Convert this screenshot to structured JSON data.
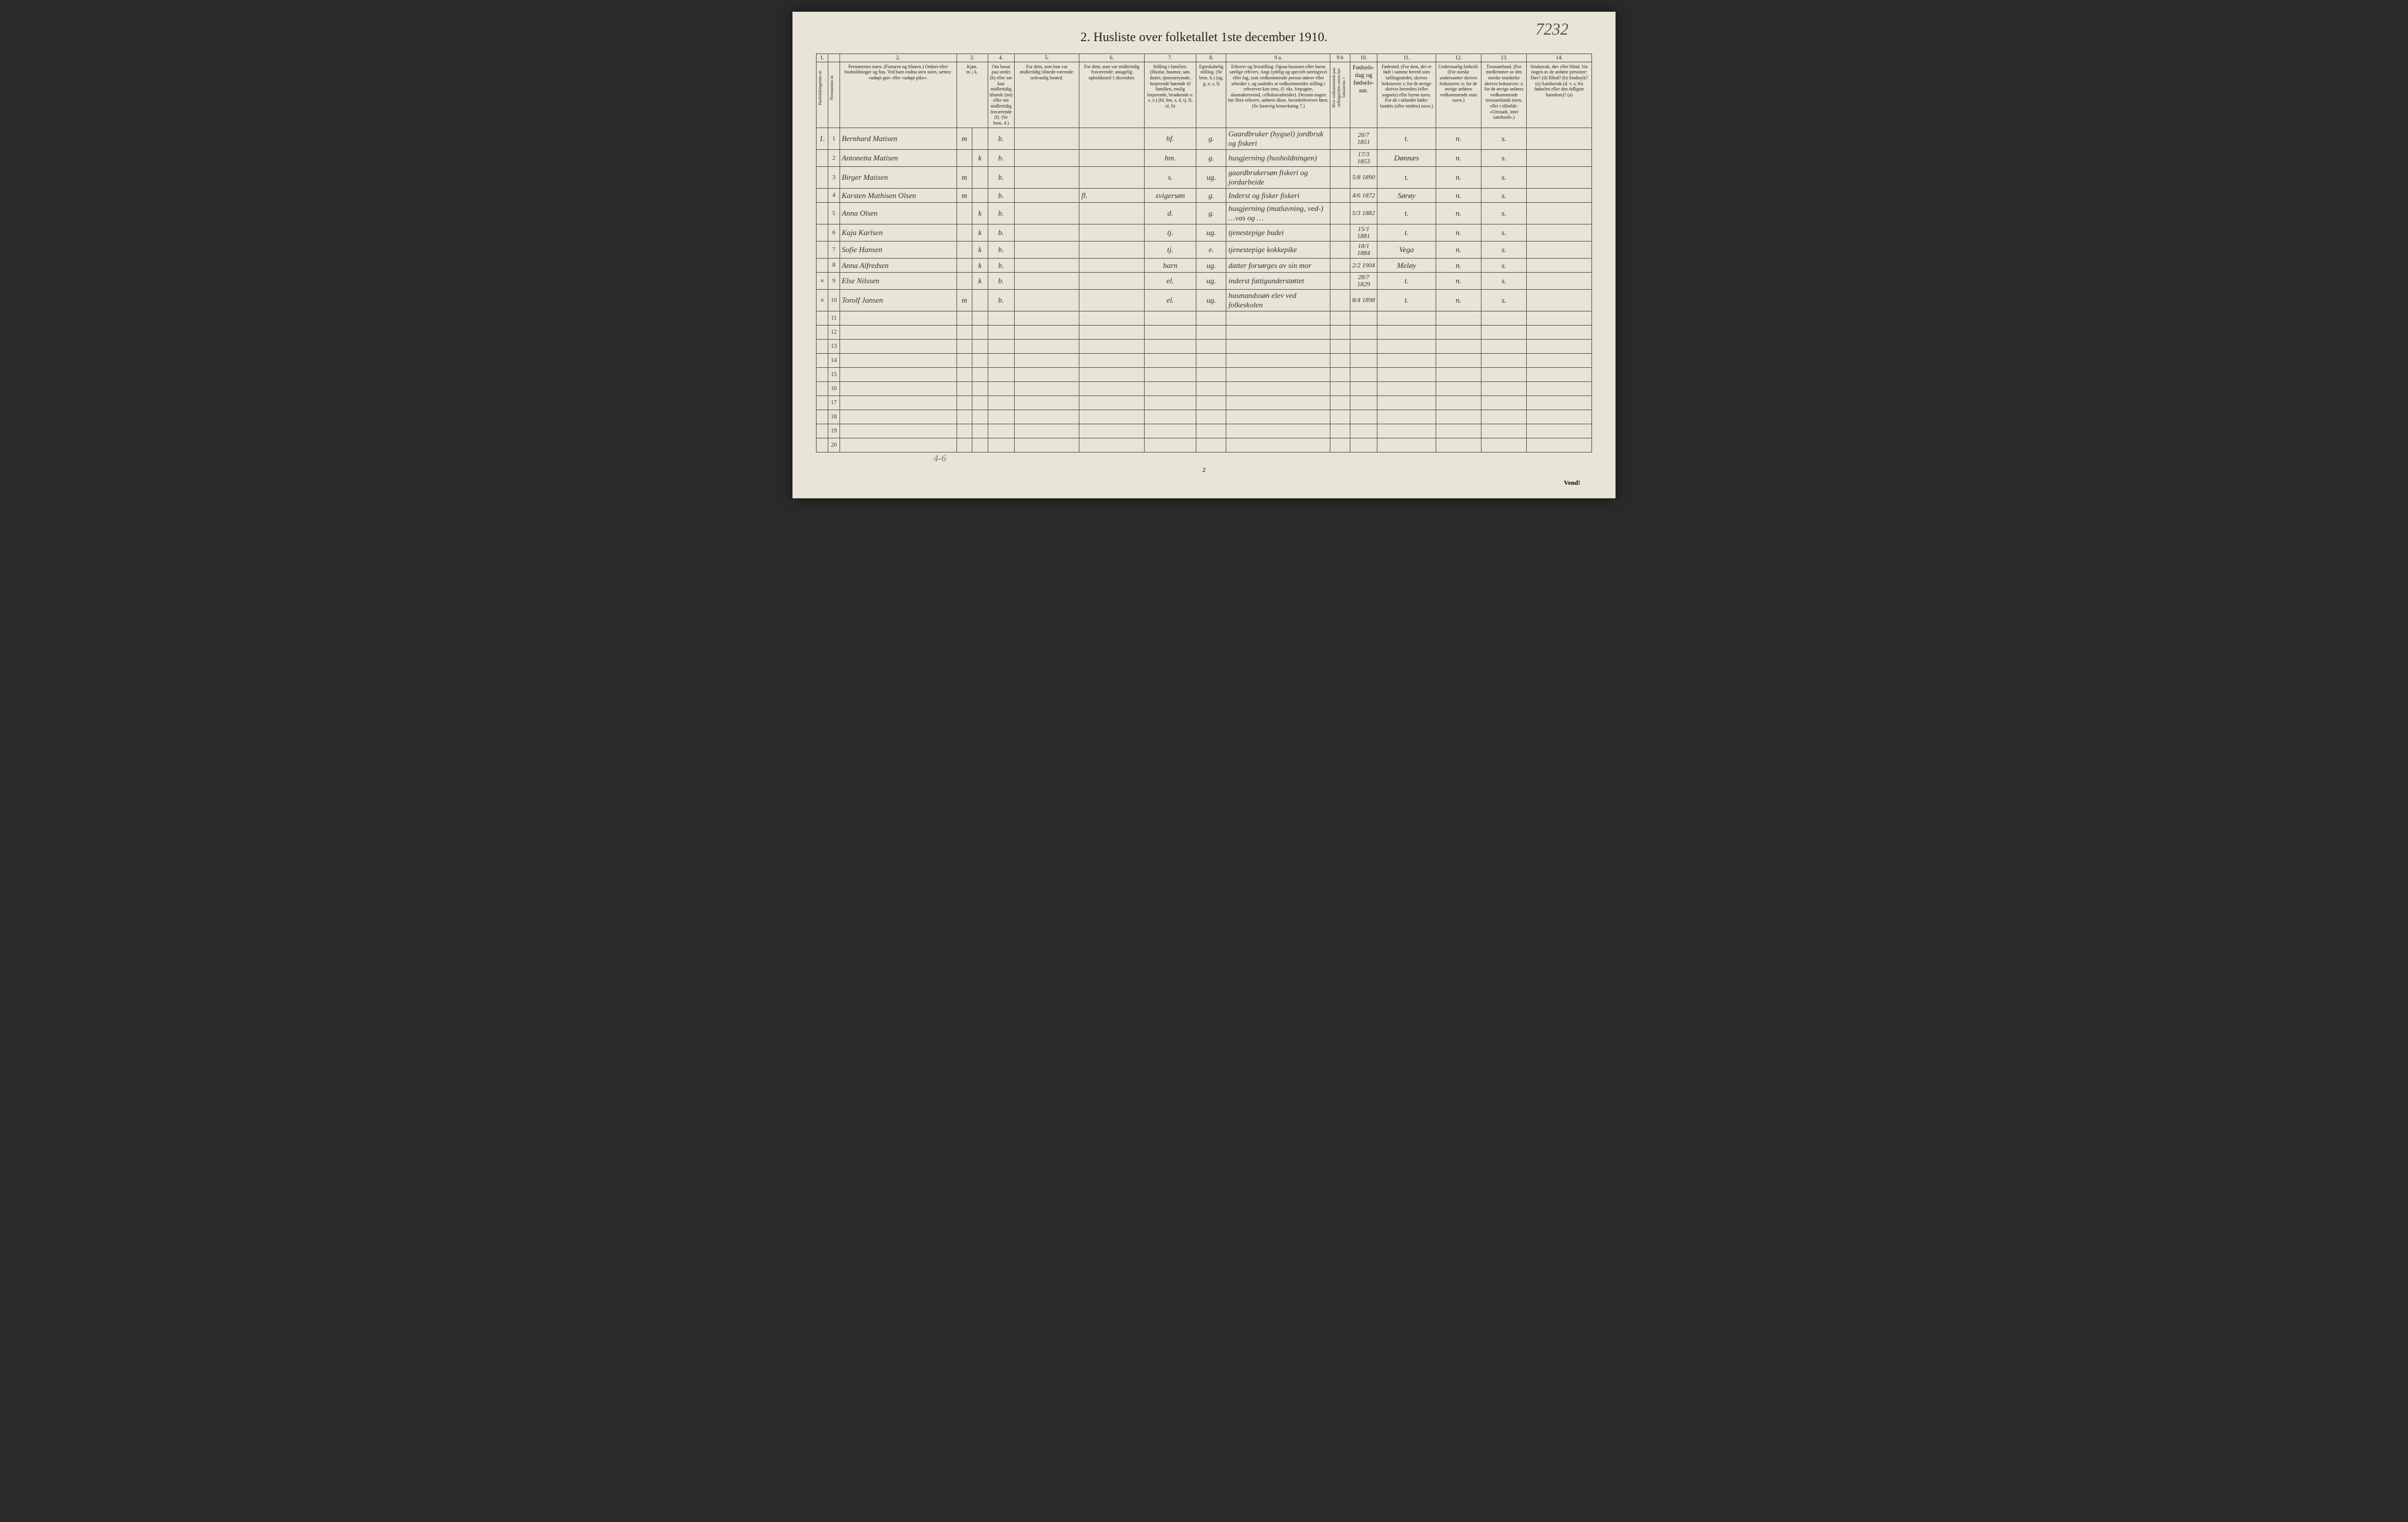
{
  "top_annotation": "7232",
  "title": "2. Husliste over folketallet 1ste december 1910.",
  "col_numbers": [
    "1.",
    "",
    "2.",
    "3.",
    "4.",
    "5.",
    "6.",
    "7.",
    "8.",
    "9 a.",
    "9 b",
    "10.",
    "11.",
    "12.",
    "13.",
    "14."
  ],
  "headers": {
    "household": "Husholdningernes nr.",
    "person": "Personernes nr.",
    "name": "Personernes navn.\n(Fornavn og tilnavn.)\nOrdnet efter husholdninger og hus.\nVed barn endnu uten navn, sættes: «udøpt gut» eller «udøpt pike».",
    "sex": "Kjøn.",
    "sex_sub": "Mænd.  Kvinder.",
    "sex_mk": "m. | k.",
    "present": "Om bosat paa stedet (b) eller om kun midlertidig tilstede (mt) eller om midlertidig fraværende (f).\n(Se bem. 4.)",
    "temp_present": "For dem, som kun var midlertidig tilstede-værende:\nsedvanlig bosted.",
    "temp_absent": "For dem, som var midlertidig fraværende:\nantagelig opholdssted 1 december.",
    "family": "Stilling i familien.\n(Husfar, husmor, søn, datter, tjenestetyende, losjerende hørende til familien, enslig losjerende, besøkende o. s. v.)\n(hf, hm, s, d, tj, fl, el, b)",
    "marital": "Egteskabelig stilling.\n(Se bem. 6.)\n(ug, g, e, s, f)",
    "occupation": "Erhverv og livsstilling.\nOgsaa husmors eller barns særlige erhverv.\nAngi tydelig og specielt næringsvei eller fag, som vedkommende person utøver eller arbeider i, og saaledes at vedkommendes stilling i erhvervet kan sees, (f. eks. forpagter, skomakersvend, cellulosearbeider). Dersom nogen har flere erhverv, anføres disse, hovederhvervet først.\n(Se forøvrig bemerkning 7.)",
    "born_here": "Hvis vedkommende paa tællingstiden sættes her bokstaven: t",
    "birth": "Fødsels-dag og fødsels-aar.",
    "birthplace": "Fødested.\n(For dem, der er født i samme herred som tællingsstedet, skrives bokstaven: t; for de øvrige skrives herredets (eller sognets) eller byens navn.\nFor de i utlandet fødte: landets (eller stedets) navn.)",
    "nationality": "Undersaatlig forhold.\n(For norske undersaatter skrives bokstaven: n; for de øvrige anføres vedkommende stats navn.)",
    "religion": "Trossamfund.\n(For medlemmer av den norske statskirke skrives bokstaven: s; for de øvrige anføres vedkommende trossamfunds navn, eller i tilfælde: «Uttraadt, intet samfund».)",
    "disability": "Sindssvak, døv eller blind.\nVar nogen av de anførte personer:\nDøv? (d)\nBlind? (b)\nSindssyk? (s)\nAandssvak (d. v. s. fra fødselen eller den tidligste barndom)? (a)"
  },
  "rows": [
    {
      "hh": "1.",
      "pn": "1",
      "name": "Bernhard Matisen",
      "sex": "m",
      "present": "b.",
      "temp": "",
      "abs": "",
      "family": "hf.",
      "marital": "g.",
      "occupation": "Gaardbruker (bygsel)\njordbruk og fiskeri",
      "born": "",
      "birth": "26/7 1851",
      "birthplace": "t.",
      "nat": "n.",
      "rel": "s.",
      "dis": ""
    },
    {
      "hh": "",
      "pn": "2",
      "name": "Antonetta Matisen",
      "sex": "k",
      "present": "b.",
      "temp": "",
      "abs": "",
      "family": "hm.",
      "marital": "g.",
      "occupation": "husgjerning (husholdningen)",
      "born": "",
      "birth": "17/3 1853",
      "birthplace": "Dønnæs",
      "nat": "n.",
      "rel": "s.",
      "dis": ""
    },
    {
      "hh": "",
      "pn": "3",
      "name": "Birger Matisen",
      "sex": "m",
      "present": "b.",
      "temp": "",
      "abs": "",
      "family": "s.",
      "marital": "ug.",
      "occupation": "gaardbrukersøn\nfiskeri og jordarbeide",
      "born": "",
      "birth": "5/8 1890",
      "birthplace": "t.",
      "nat": "n.",
      "rel": "s.",
      "dis": ""
    },
    {
      "hh": "",
      "pn": "4",
      "name": "Karsten Mathisen Olsen",
      "sex": "m",
      "present": "b.",
      "temp": "",
      "abs": "fl.",
      "family": "svigersøn",
      "marital": "g.",
      "occupation": "Inderst og fisker\nfiskeri",
      "born": "",
      "birth": "4/6 1872",
      "birthplace": "Sørøy",
      "nat": "n.",
      "rel": "s.",
      "dis": ""
    },
    {
      "hh": "",
      "pn": "5",
      "name": "Anna Olsen",
      "sex": "k",
      "present": "b.",
      "temp": "",
      "abs": "",
      "family": "d.",
      "marital": "g.",
      "occupation": "husgjerning (matlavning, ved-)\n…vas og …",
      "born": "",
      "birth": "5/3 1882",
      "birthplace": "t.",
      "nat": "n.",
      "rel": "s.",
      "dis": ""
    },
    {
      "hh": "",
      "pn": "6",
      "name": "Kaja Karlsen",
      "sex": "k",
      "present": "b.",
      "temp": "",
      "abs": "",
      "family": "tj.",
      "marital": "ug.",
      "occupation": "tjenestepige\nbudei",
      "born": "",
      "birth": "15/1 1881",
      "birthplace": "t.",
      "nat": "n.",
      "rel": "s.",
      "dis": ""
    },
    {
      "hh": "",
      "pn": "7",
      "name": "Sofie Hansen",
      "sex": "k",
      "present": "b.",
      "temp": "",
      "abs": "",
      "family": "tj.",
      "marital": "e.",
      "occupation": "tjenestepige\nkokkepike",
      "born": "",
      "birth": "18/1 1884",
      "birthplace": "Vega",
      "nat": "n.",
      "rel": "s.",
      "dis": ""
    },
    {
      "hh": "",
      "pn": "8",
      "name": "Anna Alfredsen",
      "sex": "k",
      "present": "b.",
      "temp": "",
      "abs": "",
      "family": "barn",
      "marital": "ug.",
      "occupation": "datter\nforsørges av sin mor",
      "born": "",
      "birth": "2/2 1904",
      "birthplace": "Meløy",
      "nat": "n.",
      "rel": "s.",
      "dis": ""
    },
    {
      "hh": "×",
      "pn": "9",
      "name": "Else Nilssen",
      "sex": "k",
      "present": "b.",
      "temp": "",
      "abs": "",
      "family": "el.",
      "marital": "ug.",
      "occupation": "inderst\nfattigunderstøttet",
      "born": "",
      "birth": "28/7 1829",
      "birthplace": "t.",
      "nat": "n.",
      "rel": "s.",
      "dis": ""
    },
    {
      "hh": "×",
      "pn": "10",
      "name": "Torolf Jansen",
      "sex": "m",
      "present": "b.",
      "temp": "",
      "abs": "",
      "family": "el.",
      "marital": "ug.",
      "occupation": "husmandssøn\nelev ved folkeskolen",
      "born": "",
      "birth": "8/4 1898",
      "birthplace": "t.",
      "nat": "n.",
      "rel": "s.",
      "dis": ""
    }
  ],
  "empty_rows": [
    11,
    12,
    13,
    14,
    15,
    16,
    17,
    18,
    19,
    20
  ],
  "bottom_annotation": "4-6",
  "page_num": "2",
  "vend": "Vend!",
  "colors": {
    "page_bg": "#e8e4d6",
    "border": "#555555",
    "text": "#222222",
    "handwriting": "#333333"
  }
}
